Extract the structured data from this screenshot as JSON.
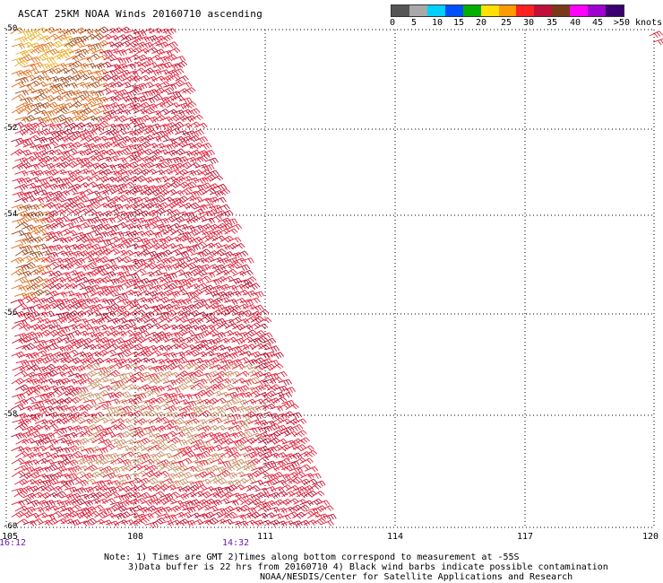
{
  "title": "ASCAT 25KM NOAA Winds 20160710 ascending",
  "colorbar": {
    "colors": [
      "#555555",
      "#a9a9a9",
      "#00d0ff",
      "#0050ff",
      "#00b000",
      "#ffe000",
      "#ff9a00",
      "#ff2020",
      "#c01038",
      "#7a3a1a",
      "#ff00ff",
      "#a000d0",
      "#3a0070"
    ],
    "labels": [
      "0",
      "5",
      "10",
      "15",
      "20",
      "25",
      "30",
      "35",
      "40",
      "45",
      ">50 knots"
    ]
  },
  "map": {
    "lat_labels": [
      "-50",
      "-52",
      "-54",
      "-56",
      "-58",
      "-60"
    ],
    "lon_labels": [
      "105",
      "108",
      "111",
      "114",
      "117",
      "120"
    ],
    "time_labels": [
      "16:12",
      "14:32"
    ],
    "barb_colors": {
      "red": "#e0203a",
      "dark_red": "#b81030",
      "orange": "#e07020",
      "gold": "#e8b028",
      "tan": "#c89068",
      "brown": "#9a4a20"
    }
  },
  "notes": {
    "line1": "Note: 1) Times are GMT 2)Times along bottom correspond to measurement at -55S",
    "line2": "3)Data buffer is 22 hrs from 20160710 4) Black wind barbs indicate possible contamination",
    "line3": "NOAA/NESDIS/Center for Satellite Applications and Research"
  }
}
